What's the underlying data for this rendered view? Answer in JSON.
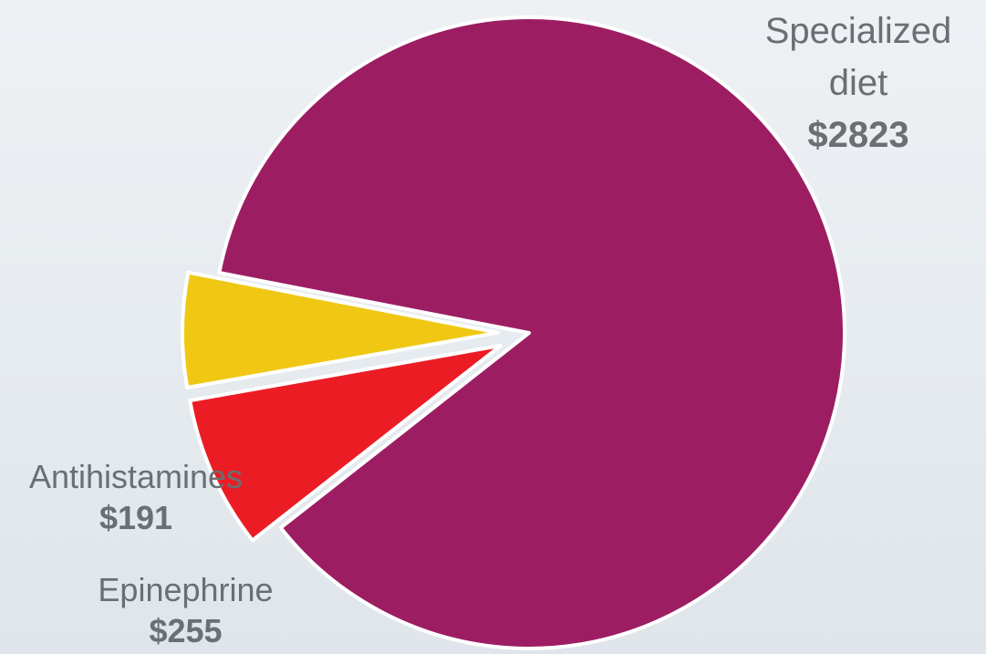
{
  "chart_data": {
    "type": "pie",
    "series": [
      {
        "values": [
          2823,
          191,
          255
        ],
        "categories": [
          "Specialized diet",
          "Antihistamines",
          "Epinephrine"
        ]
      }
    ],
    "slices": [
      {
        "label_line1": "Specialized",
        "label_line2": "diet",
        "name": "Specialized diet",
        "value": 2823,
        "value_label": "$2823",
        "color": "#9d1d63",
        "exploded": false
      },
      {
        "label_line1": "Antihistamines",
        "name": "Antihistamines",
        "value": 191,
        "value_label": "$191",
        "color": "#f0c814",
        "exploded": true
      },
      {
        "label_line1": "Epinephrine",
        "name": "Epinephrine",
        "value": 255,
        "value_label": "$255",
        "color": "#ec1c24",
        "exploded": true
      }
    ],
    "legend": "none",
    "label_color": "#6a6f73",
    "slice_border_color": "#ffffff"
  }
}
